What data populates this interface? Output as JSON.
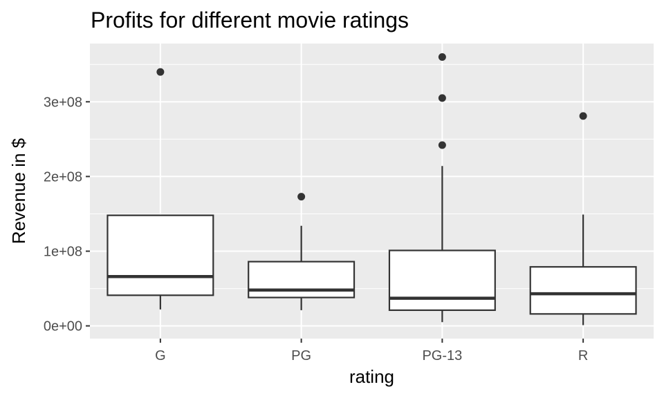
{
  "chart_data": {
    "type": "boxplot",
    "title": "Profits for different movie ratings",
    "xlabel": "rating",
    "ylabel": "Revenue in $",
    "categories": [
      "G",
      "PG",
      "PG-13",
      "R"
    ],
    "y_ticks": [
      {
        "value": 0,
        "label": "0e+00"
      },
      {
        "value": 100000000,
        "label": "1e+08"
      },
      {
        "value": 200000000,
        "label": "2e+08"
      },
      {
        "value": 300000000,
        "label": "3e+08"
      }
    ],
    "ylim": [
      -17000000,
      378000000
    ],
    "grid": true,
    "legend": "none",
    "colors": {
      "panel_bg": "#ebebeb",
      "grid_major": "#ffffff",
      "box_fill": "#ffffff",
      "box_stroke": "#333333",
      "outlier": "#333333"
    },
    "boxes": [
      {
        "category": "G",
        "lower_whisker": 22000000,
        "q1": 41000000,
        "median": 66000000,
        "q3": 148000000,
        "upper_whisker": 148000000,
        "outliers": [
          340000000
        ]
      },
      {
        "category": "PG",
        "lower_whisker": 21000000,
        "q1": 38000000,
        "median": 48000000,
        "q3": 86000000,
        "upper_whisker": 134000000,
        "outliers": [
          173000000
        ]
      },
      {
        "category": "PG-13",
        "lower_whisker": 5000000,
        "q1": 21000000,
        "median": 37000000,
        "q3": 101000000,
        "upper_whisker": 214000000,
        "outliers": [
          242000000,
          305000000,
          360000000
        ]
      },
      {
        "category": "R",
        "lower_whisker": 1000000,
        "q1": 16000000,
        "median": 43000000,
        "q3": 79000000,
        "upper_whisker": 149000000,
        "outliers": [
          281000000
        ]
      }
    ]
  }
}
